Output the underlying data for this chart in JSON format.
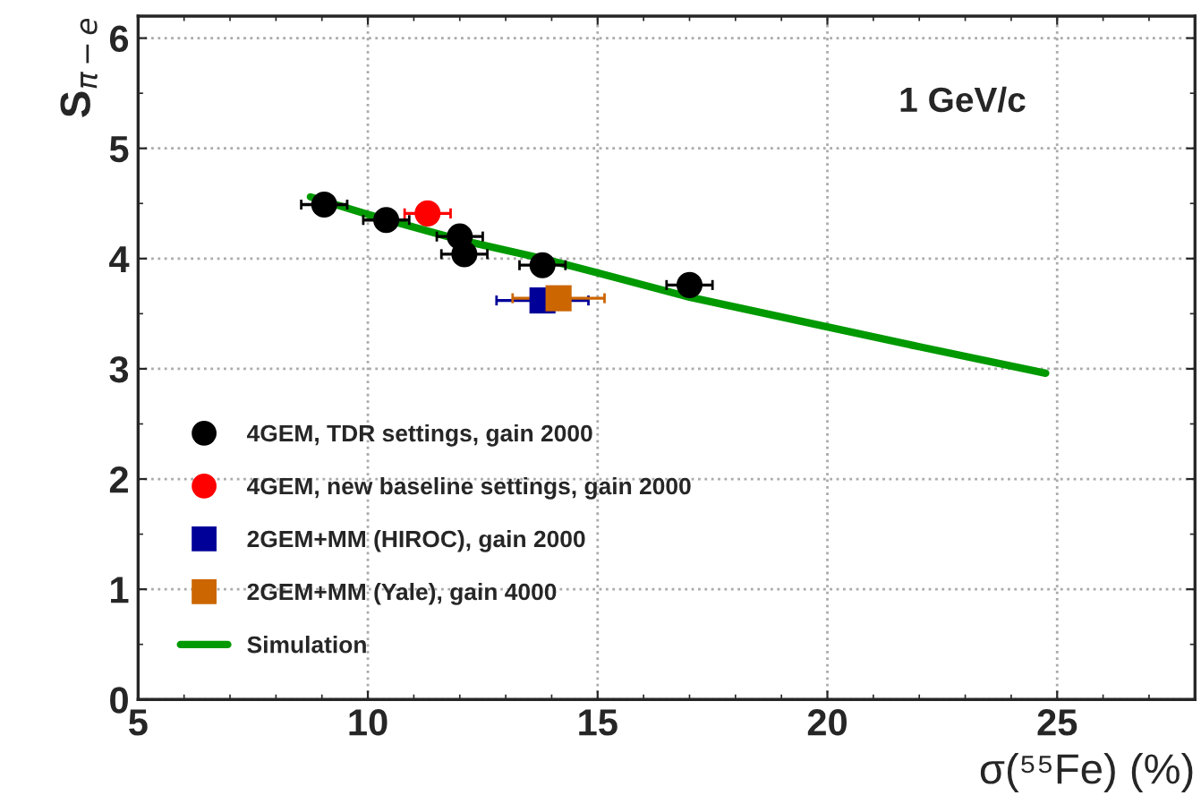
{
  "chart_data": {
    "type": "scatter",
    "xlabel": "σ(⁵⁵Fe) (%)",
    "ylabel": "S$_{π−e}$",
    "annotations": [
      {
        "text": "1 GeV/c"
      }
    ],
    "xlim": [
      5,
      28
    ],
    "ylim": [
      0,
      6.2
    ],
    "xticks": [
      5,
      10,
      15,
      20,
      25
    ],
    "yticks": [
      0,
      1,
      2,
      3,
      4,
      5,
      6
    ],
    "grid": true,
    "legend": "bottom left",
    "series": [
      {
        "name": "4GEM, TDR settings, gain 2000",
        "marker": "circle",
        "color": "#000000",
        "x": [
          9.05,
          10.4,
          12.0,
          12.1,
          13.8,
          17.0
        ],
        "values": [
          4.49,
          4.35,
          4.2,
          4.04,
          3.94,
          3.76
        ],
        "xerrors": [
          0.5,
          0.5,
          0.5,
          0.5,
          0.5,
          0.5
        ]
      },
      {
        "name": "4GEM, new baseline settings, gain 2000",
        "marker": "circle",
        "color": "#ff0000",
        "x": [
          11.3
        ],
        "values": [
          4.41
        ],
        "xerrors": [
          0.5
        ]
      },
      {
        "name": "2GEM+MM (HIROC), gain 2000",
        "marker": "square",
        "color": "#000099",
        "x": [
          13.8
        ],
        "values": [
          3.62
        ],
        "xerrors": [
          1.0
        ],
        "errors": [
          0.06
        ]
      },
      {
        "name": "2GEM+MM (Yale), gain 4000",
        "marker": "square",
        "color": "#cc6600",
        "x": [
          14.15
        ],
        "values": [
          3.64
        ],
        "xerrors": [
          1.0
        ]
      },
      {
        "name": "Simulation",
        "type": "line",
        "line_style": "solid",
        "color": "#009900",
        "x": [
          8.75,
          10,
          12,
          13.8,
          15,
          17,
          20,
          22,
          24.75
        ],
        "values": [
          4.56,
          4.4,
          4.17,
          4.0,
          3.87,
          3.65,
          3.38,
          3.2,
          2.96
        ]
      }
    ]
  }
}
